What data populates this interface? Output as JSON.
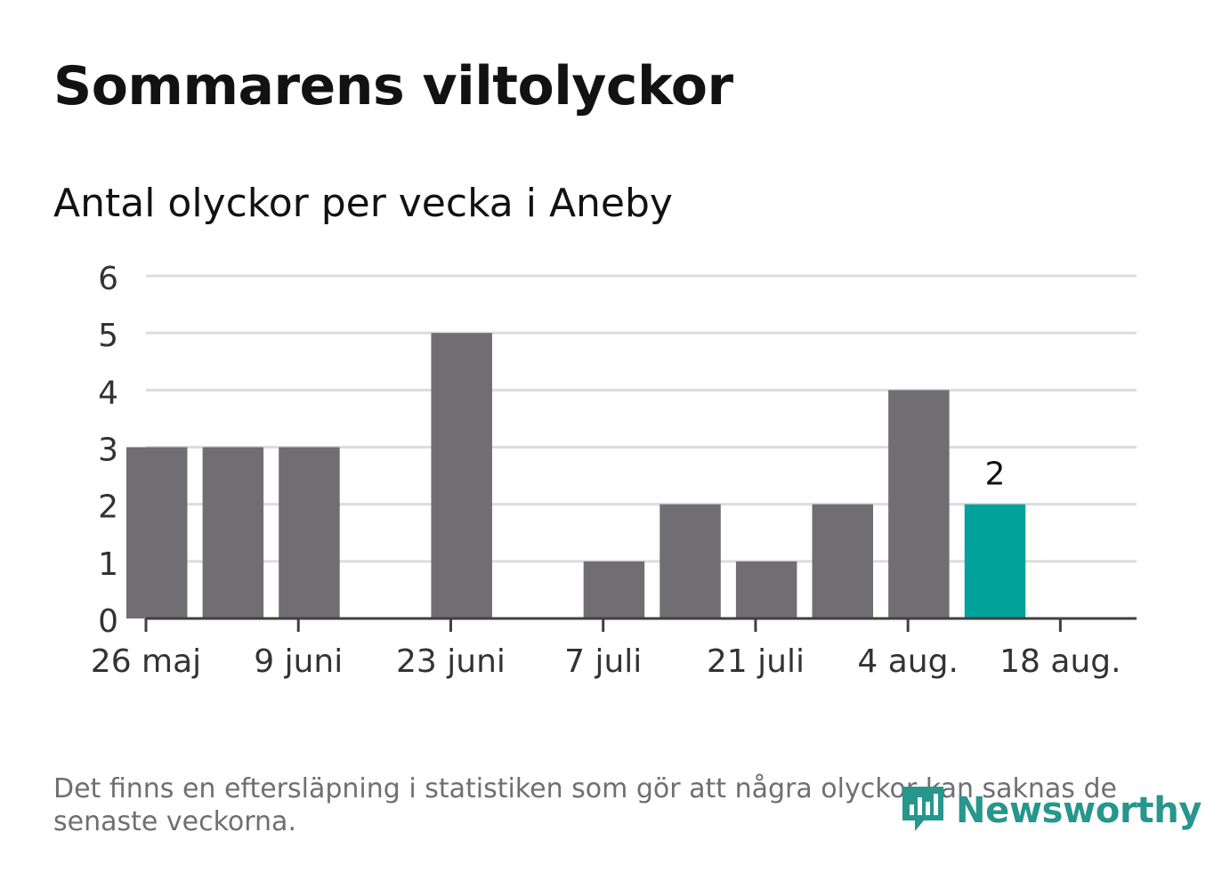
{
  "title": "Sommarens viltolyckor",
  "subtitle": "Antal olyckor per vecka i Aneby",
  "footnote": "Det finns en eftersläpning i statistiken som gör att några olyckor kan saknas de senaste veckorna.",
  "brand": {
    "name": "Newsworthy",
    "icon": "newsworthy-logo-icon",
    "color": "#27968c"
  },
  "colors": {
    "bar": "#706e73",
    "highlight": "#00a39a",
    "grid": "#dcdcdc",
    "axis": "#404040",
    "text": "#121212"
  },
  "chart_data": {
    "type": "bar",
    "x": [
      "2024-05-27",
      "2024-06-03",
      "2024-06-10",
      "2024-06-17",
      "2024-06-24",
      "2024-07-01",
      "2024-07-08",
      "2024-07-15",
      "2024-07-22",
      "2024-07-29",
      "2024-08-05",
      "2024-08-12"
    ],
    "values": [
      3,
      3,
      3,
      0,
      5,
      0,
      1,
      2,
      1,
      2,
      4,
      2
    ],
    "highlight_index": 11,
    "data_labels": [
      {
        "index": 11,
        "text": "2"
      }
    ],
    "xticks": [
      "26 maj",
      "9 juni",
      "23 juni",
      "7 juli",
      "21 juli",
      "4 aug.",
      "18 aug."
    ],
    "yticks": [
      "0",
      "1",
      "2",
      "3",
      "4",
      "5",
      "6"
    ],
    "ylim": [
      0,
      6
    ],
    "xlabel": "",
    "ylabel": "",
    "grid": true,
    "legend": false
  }
}
